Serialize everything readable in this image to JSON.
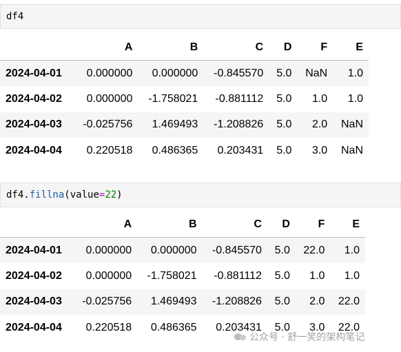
{
  "cell1": {
    "code": "df4"
  },
  "cell2": {
    "code_fn_obj": "df4.",
    "code_fn": "fillna",
    "code_open": "(value",
    "code_eq": "=",
    "code_num": "22",
    "code_close": ")"
  },
  "table1": {
    "columns": [
      "A",
      "B",
      "C",
      "D",
      "F",
      "E"
    ],
    "rows": [
      {
        "index": "2024-04-01",
        "cells": [
          "0.000000",
          "0.000000",
          "-0.845570",
          "5.0",
          "NaN",
          "1.0"
        ]
      },
      {
        "index": "2024-04-02",
        "cells": [
          "0.000000",
          "-1.758021",
          "-0.881112",
          "5.0",
          "1.0",
          "1.0"
        ]
      },
      {
        "index": "2024-04-03",
        "cells": [
          "-0.025756",
          "1.469493",
          "-1.208826",
          "5.0",
          "2.0",
          "NaN"
        ]
      },
      {
        "index": "2024-04-04",
        "cells": [
          "0.220518",
          "0.486365",
          "0.203431",
          "5.0",
          "3.0",
          "NaN"
        ]
      }
    ]
  },
  "table2": {
    "columns": [
      "A",
      "B",
      "C",
      "D",
      "F",
      "E"
    ],
    "rows": [
      {
        "index": "2024-04-01",
        "cells": [
          "0.000000",
          "0.000000",
          "-0.845570",
          "5.0",
          "22.0",
          "1.0"
        ]
      },
      {
        "index": "2024-04-02",
        "cells": [
          "0.000000",
          "-1.758021",
          "-0.881112",
          "5.0",
          "1.0",
          "1.0"
        ]
      },
      {
        "index": "2024-04-03",
        "cells": [
          "-0.025756",
          "1.469493",
          "-1.208826",
          "5.0",
          "2.0",
          "22.0"
        ]
      },
      {
        "index": "2024-04-04",
        "cells": [
          "0.220518",
          "0.486365",
          "0.203431",
          "5.0",
          "3.0",
          "22.0"
        ]
      }
    ]
  },
  "watermark": {
    "text": "公众号 · 舒一笑的架构笔记",
    "icon": "wechat-icon"
  }
}
